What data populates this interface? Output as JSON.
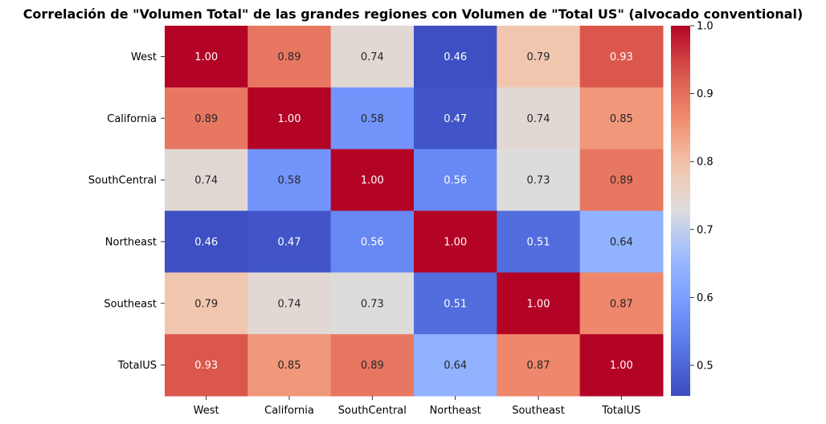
{
  "chart_data": {
    "type": "heatmap",
    "title": "Correlación de \"Volumen Total\" de las grandes regiones con Volumen de \"Total US\" (alvocado conventional)",
    "rows": [
      "West",
      "California",
      "SouthCentral",
      "Northeast",
      "Southeast",
      "TotalUS"
    ],
    "columns": [
      "West",
      "California",
      "SouthCentral",
      "Northeast",
      "Southeast",
      "TotalUS"
    ],
    "values": [
      [
        1.0,
        0.89,
        0.74,
        0.46,
        0.79,
        0.93
      ],
      [
        0.89,
        1.0,
        0.58,
        0.47,
        0.74,
        0.85
      ],
      [
        0.74,
        0.58,
        1.0,
        0.56,
        0.73,
        0.89
      ],
      [
        0.46,
        0.47,
        0.56,
        1.0,
        0.51,
        0.64
      ],
      [
        0.79,
        0.74,
        0.73,
        0.51,
        1.0,
        0.87
      ],
      [
        0.93,
        0.85,
        0.89,
        0.64,
        0.87,
        1.0
      ]
    ],
    "colormap": "coolwarm",
    "color_range": [
      0.455,
      1.0
    ],
    "colorbar_ticks": [
      0.5,
      0.6,
      0.7,
      0.8,
      0.9,
      1.0
    ],
    "colorbar_tick_labels": [
      "0.5",
      "0.6",
      "0.7",
      "0.8",
      "0.9",
      "1.0"
    ],
    "annotated": true,
    "value_format": "2 decimals"
  }
}
